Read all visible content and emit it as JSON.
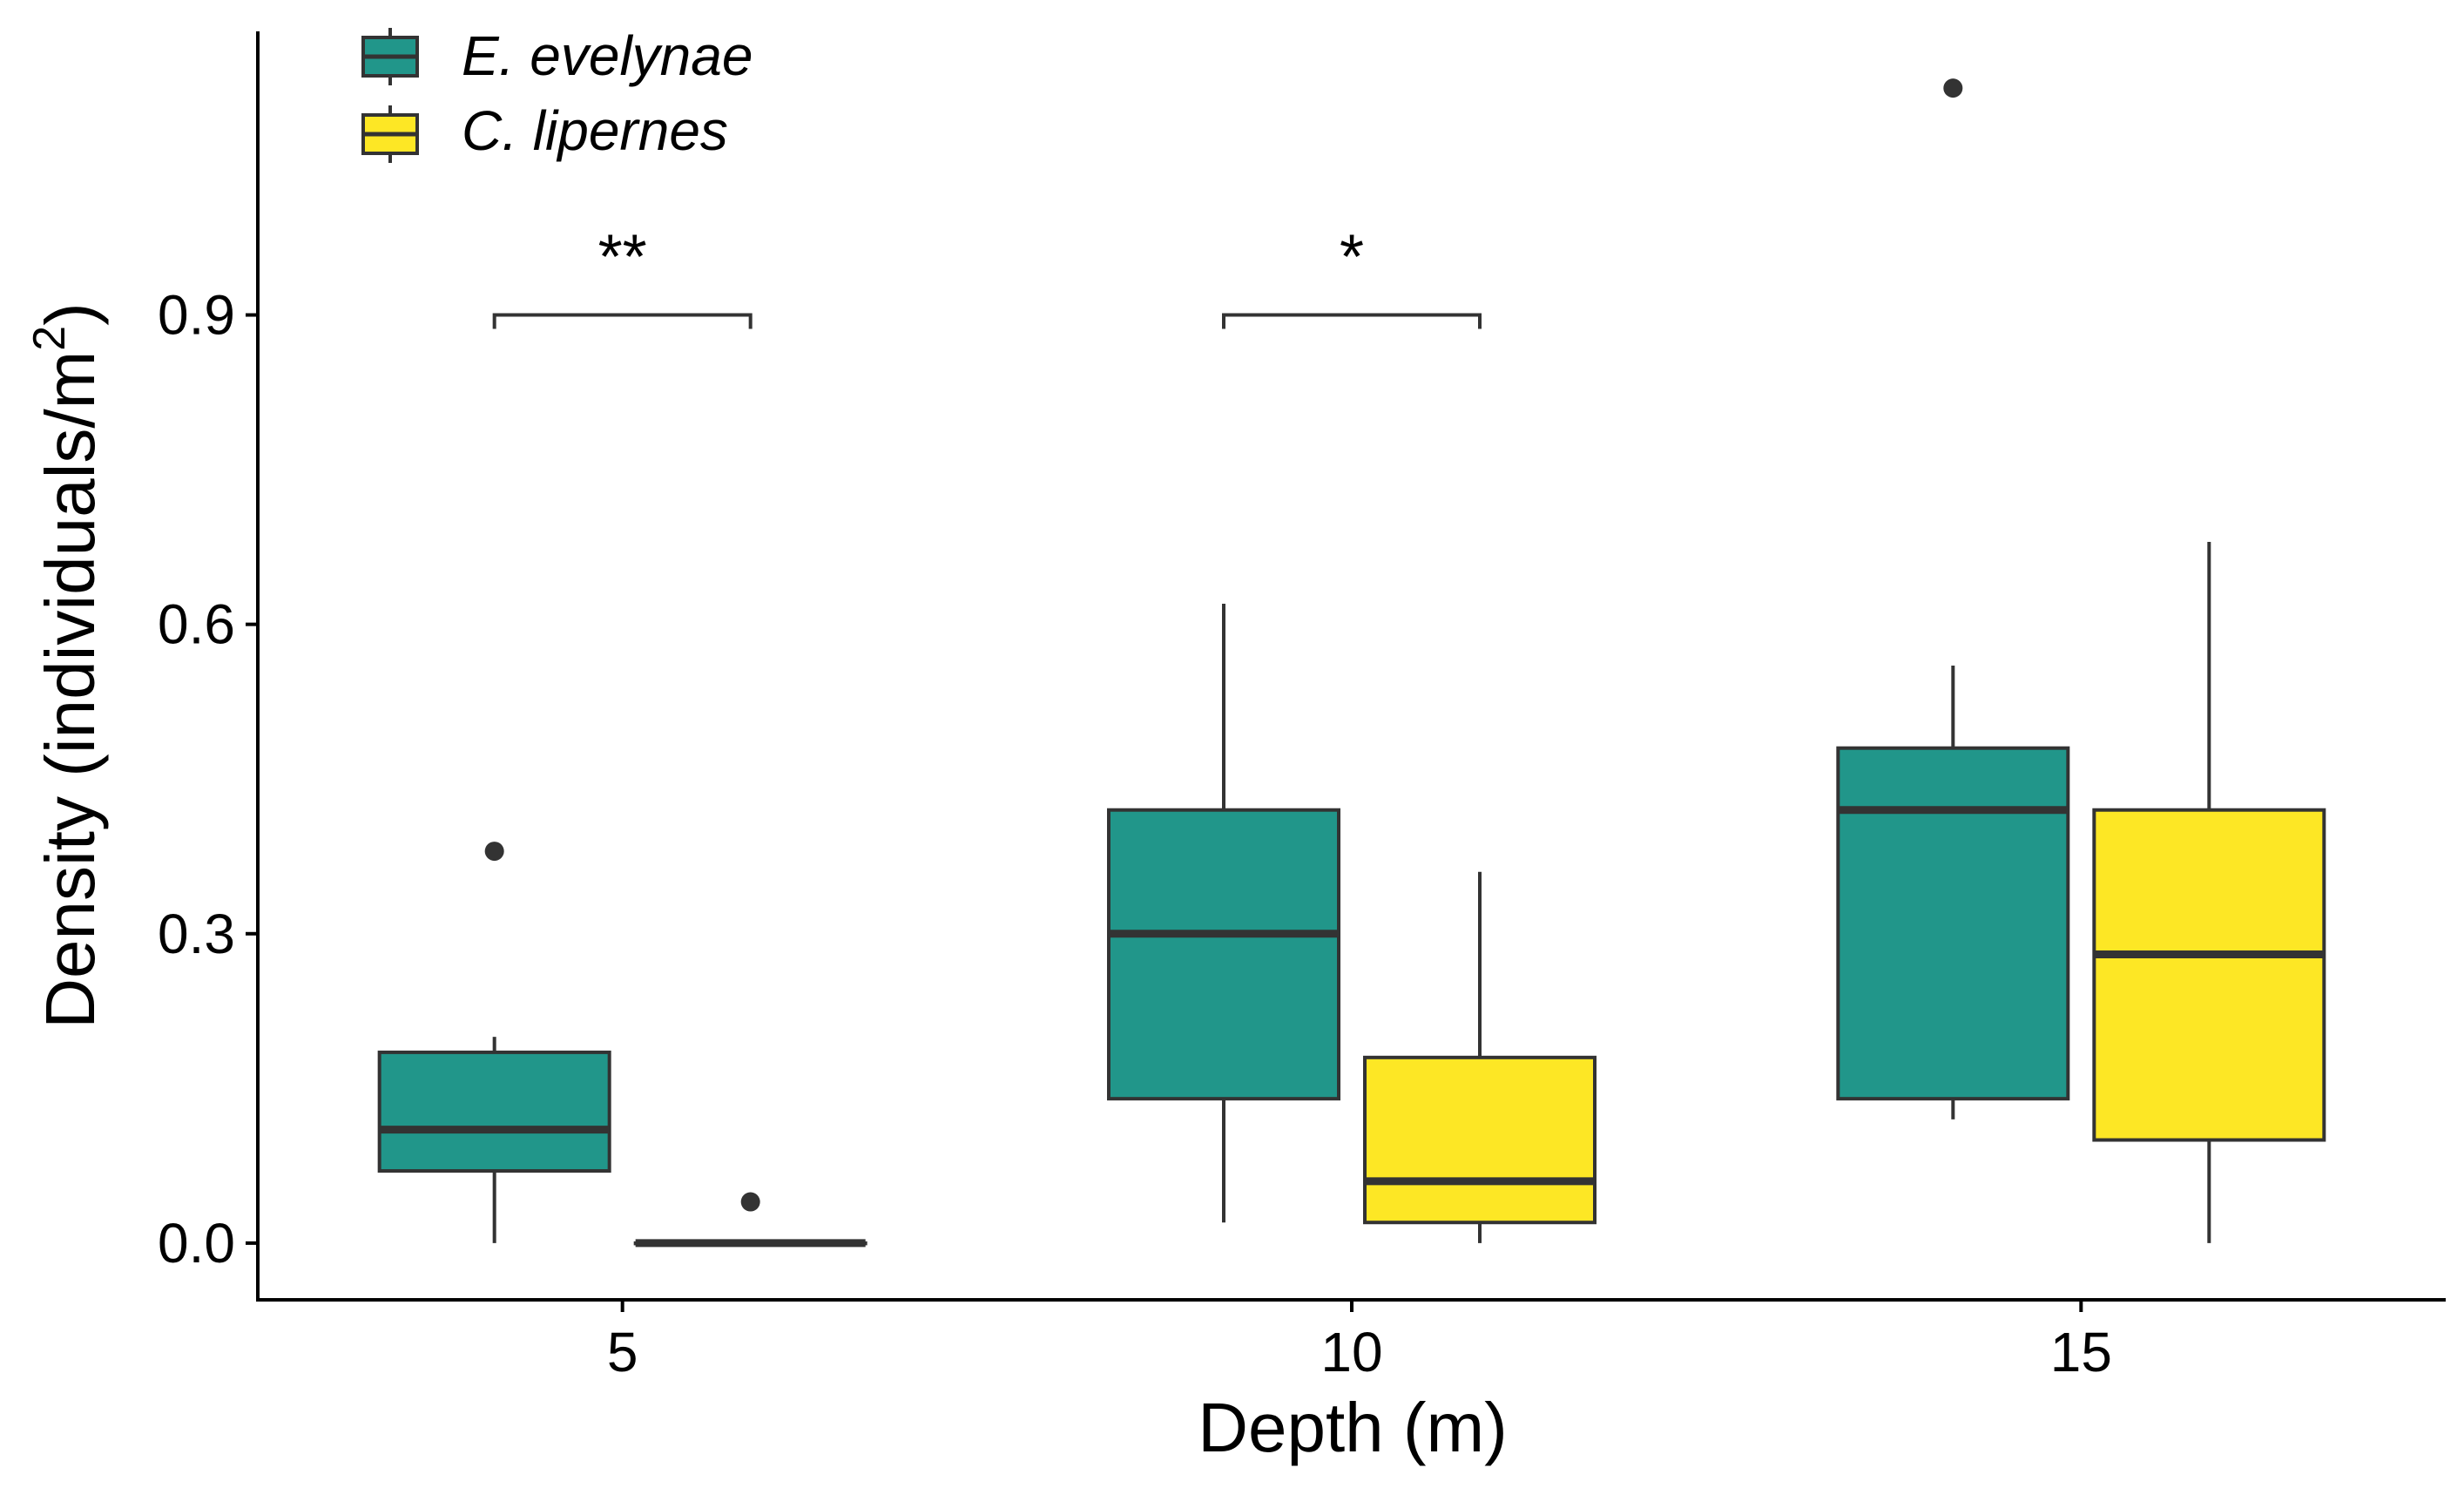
{
  "chart_data": {
    "type": "boxplot",
    "title": "",
    "xlabel": "Depth (m)",
    "ylabel": "Density (individuals/m",
    "ylabel_superscript": "2",
    "ylabel_close": ")",
    "categories": [
      "5",
      "10",
      "15"
    ],
    "ylim": [
      -0.055,
      1.175
    ],
    "yticks": [
      0.0,
      0.3,
      0.6,
      0.9
    ],
    "ytick_labels": [
      "0.0",
      "0.3",
      "0.6",
      "0.9"
    ],
    "grid": false,
    "legend_position": "top-left",
    "series": [
      {
        "name": "E. evelynae",
        "color": "#21968A",
        "boxes": [
          {
            "category": "5",
            "whisker_low": 0.0,
            "q1": 0.07,
            "median": 0.11,
            "q3": 0.185,
            "whisker_high": 0.2,
            "outliers": [
              0.38
            ]
          },
          {
            "category": "10",
            "whisker_low": 0.02,
            "q1": 0.14,
            "median": 0.3,
            "q3": 0.42,
            "whisker_high": 0.62,
            "outliers": []
          },
          {
            "category": "15",
            "whisker_low": 0.12,
            "q1": 0.14,
            "median": 0.42,
            "q3": 0.48,
            "whisker_high": 0.56,
            "outliers": [
              1.12
            ]
          }
        ]
      },
      {
        "name": "C. lipernes",
        "color": "#FDE725",
        "boxes": [
          {
            "category": "5",
            "whisker_low": 0.0,
            "q1": 0.0,
            "median": 0.0,
            "q3": 0.0,
            "whisker_high": 0.0,
            "outliers": [
              0.04
            ]
          },
          {
            "category": "10",
            "whisker_low": 0.0,
            "q1": 0.02,
            "median": 0.06,
            "q3": 0.18,
            "whisker_high": 0.36,
            "outliers": []
          },
          {
            "category": "15",
            "whisker_low": 0.0,
            "q1": 0.1,
            "median": 0.28,
            "q3": 0.42,
            "whisker_high": 0.68,
            "outliers": []
          }
        ]
      }
    ],
    "significance": [
      {
        "category": "5",
        "label": "**",
        "y": 0.9
      },
      {
        "category": "10",
        "label": "*",
        "y": 0.9
      }
    ]
  }
}
